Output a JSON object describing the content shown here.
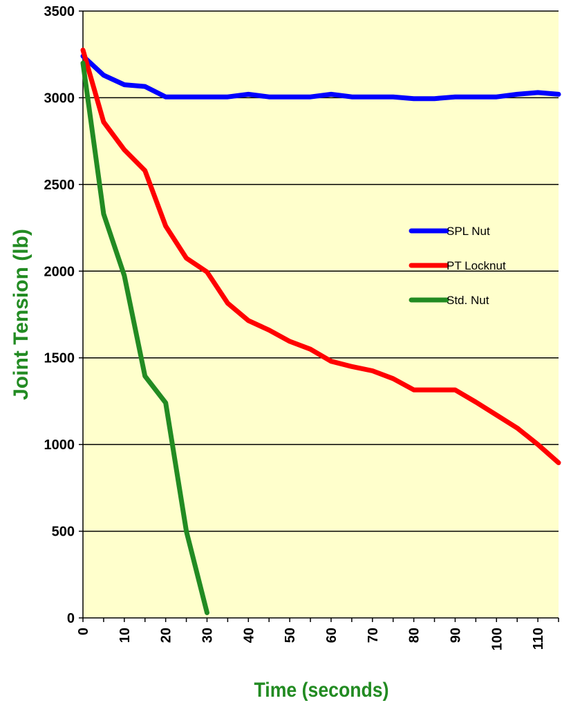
{
  "chart_data": {
    "type": "line",
    "title": "",
    "xlabel": "Time (seconds)",
    "ylabel": "Joint Tension (lb)",
    "xlim": [
      0,
      115
    ],
    "ylim": [
      0,
      3500
    ],
    "x_ticks": [
      0,
      10,
      20,
      30,
      40,
      50,
      60,
      70,
      80,
      90,
      100,
      110
    ],
    "x_tick_labels": [
      "0",
      "10",
      "20",
      "30",
      "40",
      "50",
      "60",
      "70",
      "80",
      "90",
      "100",
      "110"
    ],
    "y_ticks": [
      0,
      500,
      1000,
      1500,
      2000,
      2500,
      3000,
      3500
    ],
    "y_tick_labels": [
      "0",
      "500",
      "1000",
      "1500",
      "2000",
      "2500",
      "3000",
      "3500"
    ],
    "grid": true,
    "legend_position": "right",
    "colors": {
      "plot_bg": "#FFFFCC",
      "grid": "#000000",
      "axis_label": "#228B22"
    },
    "series": [
      {
        "name": "SPL  Nut",
        "color": "#0000FF",
        "x": [
          0,
          5,
          10,
          15,
          20,
          25,
          30,
          35,
          40,
          45,
          50,
          55,
          60,
          65,
          70,
          75,
          80,
          85,
          90,
          95,
          100,
          105,
          110,
          115
        ],
        "y": [
          3240,
          3130,
          3075,
          3065,
          3005,
          3005,
          3005,
          3005,
          3020,
          3005,
          3005,
          3005,
          3020,
          3005,
          3005,
          3005,
          2995,
          2995,
          3005,
          3005,
          3005,
          3020,
          3030,
          3020
        ]
      },
      {
        "name": "PT Locknut",
        "color": "#FF0000",
        "x": [
          0,
          5,
          10,
          15,
          20,
          25,
          30,
          35,
          40,
          45,
          50,
          55,
          60,
          65,
          70,
          75,
          80,
          85,
          90,
          95,
          100,
          105,
          110,
          115
        ],
        "y": [
          3275,
          2860,
          2700,
          2580,
          2260,
          2075,
          1995,
          1815,
          1715,
          1660,
          1595,
          1550,
          1480,
          1450,
          1425,
          1380,
          1315,
          1315,
          1315,
          1245,
          1170,
          1095,
          1000,
          895
        ]
      },
      {
        "name": "Std. Nut",
        "color": "#228B22",
        "x": [
          0,
          5,
          10,
          15,
          20,
          25,
          30
        ],
        "y": [
          3200,
          2330,
          1975,
          1395,
          1240,
          500,
          30
        ]
      }
    ]
  }
}
